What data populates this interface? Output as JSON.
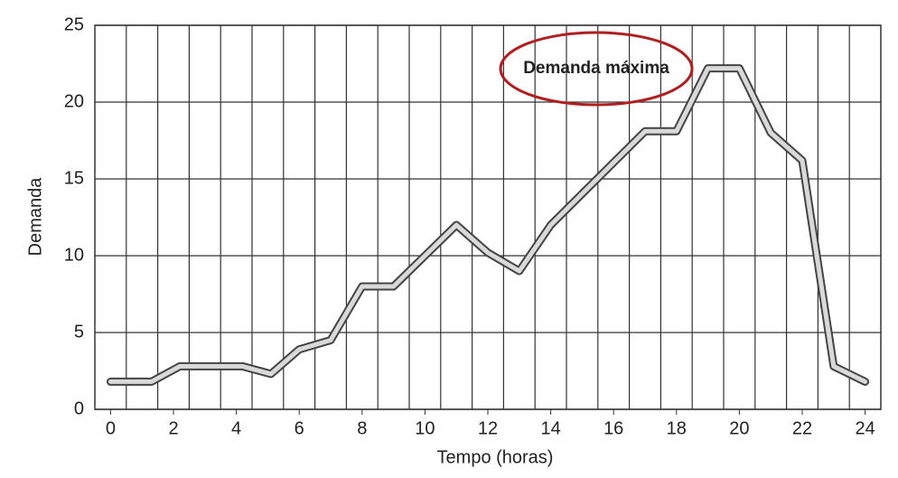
{
  "chart_data": {
    "type": "line",
    "x_label": "Tempo (horas)",
    "y_label": "Demanda",
    "annotation": "Demanda máxima",
    "x": [
      0,
      1.3,
      2.2,
      4.2,
      5.1,
      6,
      7,
      8,
      9,
      11,
      12,
      13,
      14,
      17,
      18,
      19,
      20,
      21,
      22,
      23,
      24
    ],
    "values": [
      1.8,
      1.8,
      2.8,
      2.8,
      2.3,
      3.9,
      4.5,
      8,
      8,
      12,
      10.2,
      9,
      12,
      18.1,
      18.1,
      22.2,
      22.2,
      18,
      16.2,
      2.8,
      1.8
    ],
    "xlim": [
      -0.5,
      24.5
    ],
    "ylim": [
      0,
      25
    ],
    "xticks": [
      0,
      2,
      4,
      6,
      8,
      10,
      12,
      14,
      16,
      18,
      20,
      22,
      24
    ],
    "yticks": [
      0,
      5,
      10,
      15,
      20,
      25
    ],
    "xgrid": [
      0.5,
      1.5,
      2.5,
      3.5,
      4.5,
      5.5,
      6.5,
      7.5,
      8.5,
      9.5,
      10.5,
      11.5,
      12.5,
      13.5,
      14.5,
      15.5,
      16.5,
      17.5,
      18.5,
      19.5,
      20.5,
      21.5,
      22.5,
      23.5
    ],
    "grid": true,
    "color": "#d9d9d9",
    "annotation_color": "#b01e1e"
  }
}
